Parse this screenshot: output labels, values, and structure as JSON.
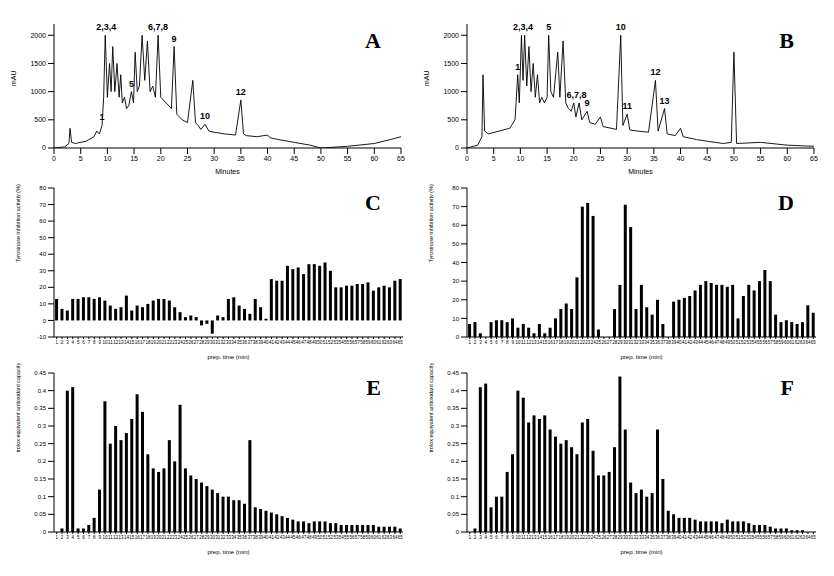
{
  "chart_data": [
    {
      "type": "line",
      "title": "A",
      "x_label": "Minutes",
      "y_label": "mAU",
      "color": "#000000",
      "grid": false,
      "xlim": [
        0,
        65
      ],
      "xticks": [
        0,
        5,
        10,
        15,
        20,
        25,
        30,
        35,
        40,
        45,
        50,
        55,
        60,
        65
      ],
      "ylim": [
        0,
        2200
      ],
      "yticks": [
        0,
        500,
        1000,
        1500,
        2000
      ],
      "x": [
        0,
        2,
        2.8,
        3,
        3.3,
        4,
        6,
        7.5,
        8,
        8.5,
        9,
        9.3,
        9.6,
        10,
        10.4,
        10.7,
        11,
        11.4,
        11.8,
        12.2,
        12.5,
        12.8,
        13.2,
        13.6,
        14,
        14.5,
        14.9,
        15.2,
        15.6,
        16,
        16.5,
        17,
        17.5,
        18,
        18.5,
        19,
        19.5,
        20,
        21,
        22,
        22.5,
        23,
        24,
        25,
        26,
        26.5,
        27,
        27.5,
        28.3,
        29,
        30,
        32,
        34,
        35,
        35.5,
        36,
        38,
        40,
        40.5,
        42,
        45,
        48,
        50,
        55,
        60,
        63,
        65
      ],
      "values": [
        0,
        20,
        80,
        350,
        100,
        80,
        120,
        200,
        300,
        250,
        400,
        900,
        2000,
        900,
        1500,
        1000,
        1800,
        1000,
        1500,
        900,
        1300,
        800,
        900,
        700,
        750,
        1000,
        800,
        1700,
        1000,
        1100,
        2000,
        1200,
        1900,
        1000,
        1100,
        900,
        2000,
        900,
        800,
        700,
        1800,
        600,
        500,
        450,
        1200,
        450,
        400,
        330,
        420,
        300,
        280,
        250,
        230,
        850,
        250,
        220,
        200,
        230,
        180,
        150,
        100,
        50,
        0,
        30,
        80,
        150,
        200
      ],
      "annotations": [
        {
          "text": "1",
          "x": 9,
          "y": 400
        },
        {
          "text": "2,3,4",
          "x": 9.8,
          "y": 2000
        },
        {
          "text": "5",
          "x": 14.5,
          "y": 1000
        },
        {
          "text": "6,7,8",
          "x": 19.5,
          "y": 2000
        },
        {
          "text": "9",
          "x": 22.5,
          "y": 1800
        },
        {
          "text": "10",
          "x": 28.3,
          "y": 420
        },
        {
          "text": "12",
          "x": 35,
          "y": 850
        }
      ]
    },
    {
      "type": "line",
      "title": "B",
      "x_label": "Minutes",
      "y_label": "mAU",
      "color": "#000000",
      "grid": false,
      "xlim": [
        0,
        65
      ],
      "xticks": [
        0,
        5,
        10,
        15,
        20,
        25,
        30,
        35,
        40,
        45,
        50,
        55,
        60,
        65
      ],
      "ylim": [
        0,
        2200
      ],
      "yticks": [
        0,
        500,
        1000,
        1500,
        2000
      ],
      "x": [
        0,
        2,
        2.8,
        3,
        3.3,
        4,
        6,
        8,
        9,
        9.5,
        9.8,
        10.2,
        10.5,
        10.8,
        11.2,
        11.6,
        12,
        12.4,
        12.8,
        13.2,
        13.6,
        14,
        14.5,
        15,
        15.3,
        15.7,
        16.2,
        17,
        17.4,
        18,
        18.5,
        19,
        19.5,
        20,
        20.4,
        21,
        21.5,
        22.5,
        23,
        24,
        25,
        25.5,
        27,
        28,
        28.8,
        29.2,
        30,
        30.5,
        32,
        34,
        35.3,
        35.8,
        37,
        37.5,
        39,
        40,
        40.5,
        43,
        45,
        48,
        49.5,
        50,
        50.5,
        55,
        60,
        65
      ],
      "values": [
        0,
        50,
        200,
        1300,
        300,
        250,
        300,
        350,
        500,
        1300,
        800,
        2000,
        1200,
        2000,
        1100,
        1800,
        1000,
        1500,
        900,
        1300,
        800,
        900,
        800,
        900,
        2000,
        1000,
        900,
        1700,
        900,
        1900,
        800,
        700,
        650,
        800,
        550,
        800,
        500,
        650,
        450,
        420,
        550,
        380,
        350,
        330,
        2000,
        400,
        600,
        320,
        300,
        280,
        1200,
        300,
        700,
        250,
        220,
        350,
        200,
        150,
        120,
        80,
        100,
        1700,
        80,
        100,
        50,
        30
      ],
      "annotations": [
        {
          "text": "1",
          "x": 9.5,
          "y": 1300
        },
        {
          "text": "2,3,4",
          "x": 10.5,
          "y": 2000
        },
        {
          "text": "5",
          "x": 15.3,
          "y": 2000
        },
        {
          "text": "6,7,8",
          "x": 20.5,
          "y": 800
        },
        {
          "text": "9",
          "x": 22.5,
          "y": 650
        },
        {
          "text": "10",
          "x": 28.8,
          "y": 2000
        },
        {
          "text": "11",
          "x": 30,
          "y": 600
        },
        {
          "text": "12",
          "x": 35.3,
          "y": 1200
        },
        {
          "text": "13",
          "x": 37,
          "y": 700
        }
      ]
    },
    {
      "type": "bar",
      "title": "C",
      "x_label": "prep. time (min)",
      "y_label": "Tyrosinase inhibition activity (%)",
      "color": "#000000",
      "grid": false,
      "categories": [
        1,
        2,
        3,
        4,
        5,
        6,
        7,
        8,
        9,
        10,
        11,
        12,
        13,
        14,
        15,
        16,
        17,
        18,
        19,
        20,
        21,
        22,
        23,
        24,
        25,
        26,
        27,
        28,
        29,
        30,
        31,
        32,
        33,
        34,
        35,
        36,
        37,
        38,
        39,
        40,
        41,
        42,
        43,
        44,
        45,
        46,
        47,
        48,
        49,
        50,
        51,
        52,
        53,
        54,
        55,
        56,
        57,
        58,
        59,
        60,
        61,
        62,
        63,
        64,
        65
      ],
      "ylim": [
        -10,
        80
      ],
      "yticks": [
        -10,
        0,
        10,
        20,
        30,
        40,
        50,
        60,
        70,
        80
      ],
      "values": [
        13,
        7,
        6,
        13,
        13,
        14,
        14,
        13,
        14,
        12,
        9,
        7,
        8,
        15,
        6,
        9,
        8,
        10,
        12,
        13,
        13,
        12,
        8,
        5,
        2,
        3,
        2,
        -3,
        -2,
        -8,
        3,
        2,
        13,
        14,
        9,
        7,
        4,
        13,
        8,
        1,
        25,
        24,
        24,
        33,
        31,
        32,
        28,
        34,
        34,
        33,
        35,
        30,
        20,
        20,
        21,
        21,
        22,
        22,
        23,
        18,
        20,
        21,
        20,
        24,
        25
      ]
    },
    {
      "type": "bar",
      "title": "D",
      "x_label": "prep. time (min)",
      "y_label": "Tyrosinase inhibition activity (%)",
      "color": "#000000",
      "grid": false,
      "categories": [
        1,
        2,
        3,
        4,
        5,
        6,
        7,
        8,
        9,
        10,
        11,
        12,
        13,
        14,
        15,
        16,
        17,
        18,
        19,
        20,
        21,
        22,
        23,
        24,
        25,
        26,
        27,
        28,
        29,
        30,
        31,
        32,
        33,
        34,
        35,
        36,
        37,
        38,
        39,
        40,
        41,
        42,
        43,
        44,
        45,
        46,
        47,
        48,
        49,
        50,
        51,
        52,
        53,
        54,
        55,
        56,
        57,
        58,
        59,
        60,
        61,
        62,
        63,
        64,
        65
      ],
      "ylim": [
        0,
        80
      ],
      "yticks": [
        0,
        10,
        20,
        30,
        40,
        50,
        60,
        70,
        80
      ],
      "values": [
        7,
        8,
        2,
        0,
        8,
        9,
        9,
        8,
        10,
        5,
        7,
        5,
        2,
        7,
        2,
        5,
        10,
        15,
        18,
        15,
        32,
        70,
        72,
        65,
        4,
        0,
        0,
        15,
        28,
        71,
        59,
        15,
        28,
        16,
        12,
        20,
        7,
        0,
        19,
        20,
        21,
        22,
        25,
        28,
        30,
        29,
        28,
        28,
        27,
        28,
        10,
        22,
        28,
        25,
        30,
        36,
        30,
        12,
        8,
        9,
        8,
        7,
        8,
        17,
        13
      ]
    },
    {
      "type": "bar",
      "title": "E",
      "x_label": "prep. time (min)",
      "y_label": "trolox equivalent antioxidant capacity (mM)",
      "color": "#000000",
      "grid": false,
      "categories": [
        1,
        2,
        3,
        4,
        5,
        6,
        7,
        8,
        9,
        10,
        11,
        12,
        13,
        14,
        15,
        16,
        17,
        18,
        19,
        20,
        21,
        22,
        23,
        24,
        25,
        26,
        27,
        28,
        29,
        30,
        31,
        32,
        33,
        34,
        35,
        36,
        37,
        38,
        39,
        40,
        41,
        42,
        43,
        44,
        45,
        46,
        47,
        48,
        49,
        50,
        51,
        52,
        53,
        54,
        55,
        56,
        57,
        58,
        59,
        60,
        61,
        62,
        63,
        64,
        65
      ],
      "ylim": [
        0,
        0.45
      ],
      "yticks": [
        0,
        0.05,
        0.1,
        0.15,
        0.2,
        0.25,
        0.3,
        0.35,
        0.4,
        0.45
      ],
      "values": [
        0,
        0.01,
        0.4,
        0.41,
        0.01,
        0.01,
        0.02,
        0.04,
        0.12,
        0.37,
        0.25,
        0.3,
        0.26,
        0.28,
        0.32,
        0.39,
        0.34,
        0.22,
        0.18,
        0.17,
        0.18,
        0.26,
        0.2,
        0.36,
        0.18,
        0.16,
        0.15,
        0.14,
        0.13,
        0.12,
        0.11,
        0.1,
        0.1,
        0.09,
        0.09,
        0.08,
        0.26,
        0.07,
        0.065,
        0.06,
        0.055,
        0.05,
        0.045,
        0.04,
        0.035,
        0.03,
        0.03,
        0.025,
        0.03,
        0.03,
        0.03,
        0.025,
        0.025,
        0.02,
        0.02,
        0.02,
        0.02,
        0.02,
        0.02,
        0.02,
        0.015,
        0.015,
        0.015,
        0.015,
        0.01
      ]
    },
    {
      "type": "bar",
      "title": "F",
      "x_label": "prep. time (min)",
      "y_label": "trolox equivalent antioxidant capacity (mM)",
      "color": "#000000",
      "grid": false,
      "categories": [
        1,
        2,
        3,
        4,
        5,
        6,
        7,
        8,
        9,
        10,
        11,
        12,
        13,
        14,
        15,
        16,
        17,
        18,
        19,
        20,
        21,
        22,
        23,
        24,
        25,
        26,
        27,
        28,
        29,
        30,
        31,
        32,
        33,
        34,
        35,
        36,
        37,
        38,
        39,
        40,
        41,
        42,
        43,
        44,
        45,
        46,
        47,
        48,
        49,
        50,
        51,
        52,
        53,
        54,
        55,
        56,
        57,
        58,
        59,
        60,
        61,
        62,
        63,
        64,
        65
      ],
      "ylim": [
        0,
        0.45
      ],
      "yticks": [
        0,
        0.05,
        0.1,
        0.15,
        0.2,
        0.25,
        0.3,
        0.35,
        0.4,
        0.45
      ],
      "values": [
        0,
        0.01,
        0.41,
        0.42,
        0.07,
        0.1,
        0.1,
        0.17,
        0.22,
        0.4,
        0.38,
        0.31,
        0.33,
        0.32,
        0.33,
        0.29,
        0.27,
        0.25,
        0.26,
        0.24,
        0.22,
        0.31,
        0.32,
        0.23,
        0.16,
        0.16,
        0.17,
        0.24,
        0.44,
        0.29,
        0.14,
        0.11,
        0.12,
        0.1,
        0.11,
        0.29,
        0.15,
        0.06,
        0.05,
        0.04,
        0.04,
        0.04,
        0.035,
        0.03,
        0.03,
        0.03,
        0.03,
        0.025,
        0.035,
        0.03,
        0.03,
        0.03,
        0.025,
        0.02,
        0.02,
        0.02,
        0.015,
        0.01,
        0.01,
        0.01,
        0.005,
        0.005,
        0.005,
        0,
        0
      ]
    }
  ]
}
